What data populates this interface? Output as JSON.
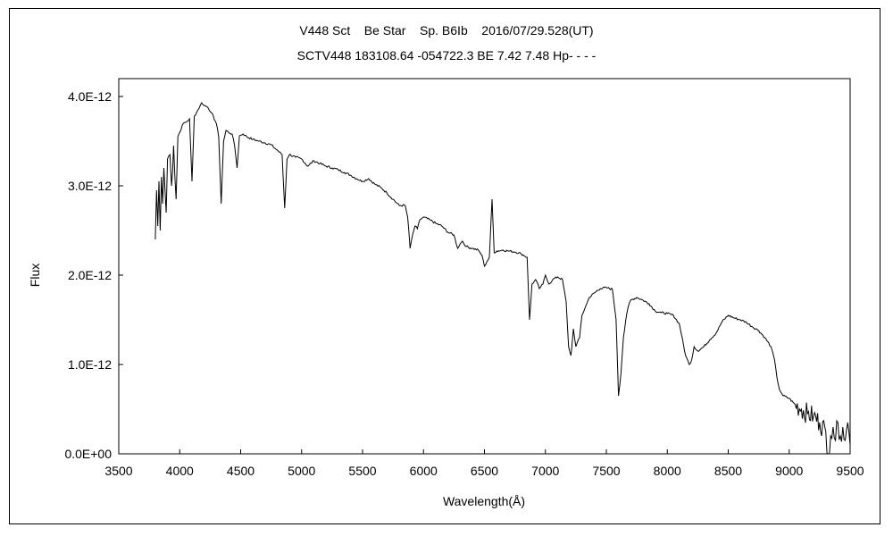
{
  "chart_data": {
    "type": "line",
    "title": "V448 Sct    Be Star    Sp. B6Ib    2016/07/29.528(UT)",
    "subtitle": "SCTV448 183108.64 -054722.3 BE 7.42 7.48 Hp- - - -",
    "xlabel": "Wavelength(Å)",
    "ylabel": "Flux",
    "xlim": [
      3500,
      9500
    ],
    "ylim": [
      0,
      4.2e-12
    ],
    "xticks": [
      3500,
      4000,
      4500,
      5000,
      5500,
      6000,
      6500,
      7000,
      7500,
      8000,
      8500,
      9000,
      9500
    ],
    "xtick_labels": [
      "3500",
      "4000",
      "4500",
      "5000",
      "5500",
      "6000",
      "6500",
      "7000",
      "7500",
      "8000",
      "8500",
      "9000",
      "9500"
    ],
    "yticks": [
      0,
      1e-12,
      2e-12,
      3e-12,
      4e-12
    ],
    "ytick_labels": [
      "0.0E+00",
      "1.0E-12",
      "2.0E-12",
      "3.0E-12",
      "4.0E-12"
    ],
    "grid": false,
    "series": [
      {
        "line_color": "#000000",
        "points": [
          [
            3800,
            2.4e-12
          ],
          [
            3810,
            2.95e-12
          ],
          [
            3820,
            2.55e-12
          ],
          [
            3830,
            3.05e-12
          ],
          [
            3840,
            2.5e-12
          ],
          [
            3850,
            3.1e-12
          ],
          [
            3860,
            2.8e-12
          ],
          [
            3870,
            3.2e-12
          ],
          [
            3889,
            2.7e-12
          ],
          [
            3900,
            3.3e-12
          ],
          [
            3920,
            3.35e-12
          ],
          [
            3933,
            3e-12
          ],
          [
            3950,
            3.45e-12
          ],
          [
            3970,
            2.85e-12
          ],
          [
            3985,
            3.55e-12
          ],
          [
            4000,
            3.6e-12
          ],
          [
            4030,
            3.7e-12
          ],
          [
            4060,
            3.72e-12
          ],
          [
            4080,
            3.75e-12
          ],
          [
            4101,
            3.05e-12
          ],
          [
            4120,
            3.78e-12
          ],
          [
            4150,
            3.85e-12
          ],
          [
            4180,
            3.93e-12
          ],
          [
            4200,
            3.9e-12
          ],
          [
            4230,
            3.88e-12
          ],
          [
            4260,
            3.82e-12
          ],
          [
            4300,
            3.7e-12
          ],
          [
            4320,
            3.55e-12
          ],
          [
            4340,
            2.8e-12
          ],
          [
            4360,
            3.5e-12
          ],
          [
            4380,
            3.62e-12
          ],
          [
            4400,
            3.6e-12
          ],
          [
            4430,
            3.58e-12
          ],
          [
            4450,
            3.45e-12
          ],
          [
            4471,
            3.2e-12
          ],
          [
            4490,
            3.56e-12
          ],
          [
            4520,
            3.58e-12
          ],
          [
            4550,
            3.55e-12
          ],
          [
            4600,
            3.52e-12
          ],
          [
            4650,
            3.5e-12
          ],
          [
            4700,
            3.48e-12
          ],
          [
            4750,
            3.46e-12
          ],
          [
            4780,
            3.42e-12
          ],
          [
            4800,
            3.4e-12
          ],
          [
            4840,
            3.35e-12
          ],
          [
            4861,
            2.75e-12
          ],
          [
            4880,
            3.3e-12
          ],
          [
            4900,
            3.35e-12
          ],
          [
            4950,
            3.32e-12
          ],
          [
            5000,
            3.3e-12
          ],
          [
            5050,
            3.22e-12
          ],
          [
            5100,
            3.28e-12
          ],
          [
            5150,
            3.25e-12
          ],
          [
            5200,
            3.22e-12
          ],
          [
            5250,
            3.2e-12
          ],
          [
            5300,
            3.18e-12
          ],
          [
            5350,
            3.15e-12
          ],
          [
            5400,
            3.12e-12
          ],
          [
            5450,
            3.08e-12
          ],
          [
            5500,
            3.05e-12
          ],
          [
            5550,
            3.08e-12
          ],
          [
            5600,
            3.02e-12
          ],
          [
            5650,
            2.98e-12
          ],
          [
            5700,
            2.92e-12
          ],
          [
            5750,
            2.85e-12
          ],
          [
            5800,
            2.78e-12
          ],
          [
            5850,
            2.78e-12
          ],
          [
            5870,
            2.65e-12
          ],
          [
            5890,
            2.3e-12
          ],
          [
            5910,
            2.45e-12
          ],
          [
            5930,
            2.55e-12
          ],
          [
            5950,
            2.52e-12
          ],
          [
            5970,
            2.62e-12
          ],
          [
            6000,
            2.65e-12
          ],
          [
            6050,
            2.62e-12
          ],
          [
            6100,
            2.58e-12
          ],
          [
            6150,
            2.55e-12
          ],
          [
            6200,
            2.48e-12
          ],
          [
            6250,
            2.45e-12
          ],
          [
            6280,
            2.3e-12
          ],
          [
            6300,
            2.35e-12
          ],
          [
            6320,
            2.38e-12
          ],
          [
            6350,
            2.32e-12
          ],
          [
            6400,
            2.3e-12
          ],
          [
            6450,
            2.28e-12
          ],
          [
            6480,
            2.22e-12
          ],
          [
            6500,
            2.1e-12
          ],
          [
            6520,
            2.15e-12
          ],
          [
            6540,
            2.2e-12
          ],
          [
            6562,
            2.85e-12
          ],
          [
            6580,
            2.25e-12
          ],
          [
            6600,
            2.27e-12
          ],
          [
            6650,
            2.28e-12
          ],
          [
            6700,
            2.27e-12
          ],
          [
            6750,
            2.26e-12
          ],
          [
            6800,
            2.24e-12
          ],
          [
            6850,
            2.2e-12
          ],
          [
            6870,
            1.5e-12
          ],
          [
            6890,
            1.9e-12
          ],
          [
            6920,
            1.95e-12
          ],
          [
            6950,
            1.85e-12
          ],
          [
            6980,
            1.9e-12
          ],
          [
            7000,
            2e-12
          ],
          [
            7030,
            1.9e-12
          ],
          [
            7060,
            1.95e-12
          ],
          [
            7100,
            1.98e-12
          ],
          [
            7140,
            1.95e-12
          ],
          [
            7170,
            1.7e-12
          ],
          [
            7190,
            1.2e-12
          ],
          [
            7210,
            1.1e-12
          ],
          [
            7230,
            1.4e-12
          ],
          [
            7250,
            1.2e-12
          ],
          [
            7280,
            1.3e-12
          ],
          [
            7300,
            1.55e-12
          ],
          [
            7330,
            1.65e-12
          ],
          [
            7360,
            1.75e-12
          ],
          [
            7400,
            1.8e-12
          ],
          [
            7450,
            1.85e-12
          ],
          [
            7500,
            1.86e-12
          ],
          [
            7550,
            1.84e-12
          ],
          [
            7580,
            1.5e-12
          ],
          [
            7600,
            6.5e-13
          ],
          [
            7620,
            9e-13
          ],
          [
            7640,
            1.3e-12
          ],
          [
            7660,
            1.5e-12
          ],
          [
            7680,
            1.65e-12
          ],
          [
            7700,
            1.72e-12
          ],
          [
            7750,
            1.75e-12
          ],
          [
            7800,
            1.72e-12
          ],
          [
            7850,
            1.68e-12
          ],
          [
            7900,
            1.6e-12
          ],
          [
            7950,
            1.58e-12
          ],
          [
            8000,
            1.57e-12
          ],
          [
            8050,
            1.55e-12
          ],
          [
            8100,
            1.45e-12
          ],
          [
            8150,
            1.1e-12
          ],
          [
            8180,
            1e-12
          ],
          [
            8200,
            1.05e-12
          ],
          [
            8220,
            1.2e-12
          ],
          [
            8250,
            1.15e-12
          ],
          [
            8300,
            1.2e-12
          ],
          [
            8350,
            1.28e-12
          ],
          [
            8400,
            1.35e-12
          ],
          [
            8450,
            1.48e-12
          ],
          [
            8500,
            1.55e-12
          ],
          [
            8550,
            1.52e-12
          ],
          [
            8600,
            1.5e-12
          ],
          [
            8650,
            1.47e-12
          ],
          [
            8700,
            1.42e-12
          ],
          [
            8750,
            1.38e-12
          ],
          [
            8800,
            1.3e-12
          ],
          [
            8850,
            1.2e-12
          ],
          [
            8880,
            1.05e-12
          ],
          [
            8900,
            8.5e-13
          ],
          [
            8920,
            7.2e-13
          ],
          [
            8950,
            6.5e-13
          ],
          [
            9000,
            6.2e-13
          ],
          [
            9050,
            5.5e-13
          ],
          [
            9100,
            5e-13
          ],
          [
            9150,
            4.5e-13
          ],
          [
            9200,
            4.2e-13
          ],
          [
            9250,
            3.5e-13
          ],
          [
            9300,
            2.5e-13
          ],
          [
            9320,
            0.0
          ],
          [
            9340,
            2e-13
          ],
          [
            9360,
            3e-13
          ],
          [
            9380,
            1.5e-13
          ],
          [
            9400,
            3.5e-13
          ],
          [
            9420,
            2e-13
          ],
          [
            9440,
            3e-13
          ],
          [
            9460,
            1.5e-13
          ],
          [
            9480,
            3.5e-13
          ],
          [
            9500,
            1e-13
          ]
        ]
      }
    ]
  }
}
